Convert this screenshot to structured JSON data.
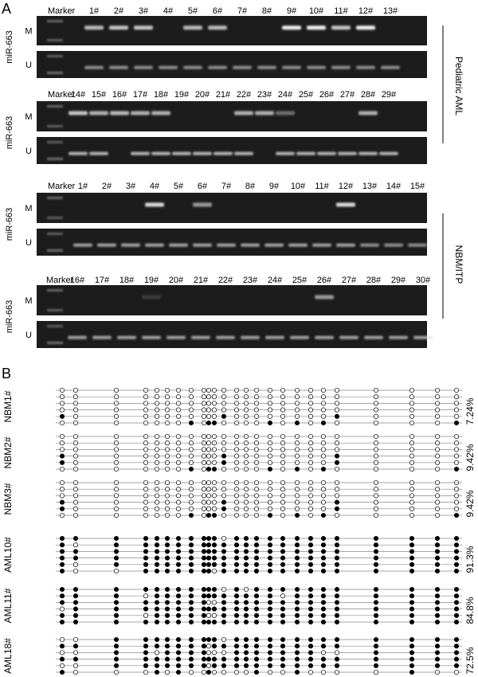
{
  "panel_a": {
    "label": "A",
    "marker_label": "Marker",
    "gene_label": "miR-663",
    "row_m": "M",
    "row_u": "U",
    "side_labels": [
      "Pediatric AML",
      "NBM/ITP"
    ],
    "gels": [
      {
        "lanes": [
          "1#",
          "2#",
          "3#",
          "4#",
          "5#",
          "6#",
          "7#",
          "8#",
          "9#",
          "10#",
          "11#",
          "12#",
          "13#"
        ],
        "m_bands": [
          0.75,
          0.8,
          0.8,
          0,
          0.75,
          0.75,
          0,
          0,
          1,
          1,
          0.8,
          1,
          0
        ],
        "u_bands": [
          0.6,
          0.6,
          0.6,
          0.6,
          0.6,
          0.6,
          0.6,
          0.6,
          0.6,
          0.6,
          0.6,
          0.6,
          0.6
        ]
      },
      {
        "lanes": [
          "14#",
          "15#",
          "16#",
          "17#",
          "18#",
          "19#",
          "20#",
          "21#",
          "22#",
          "23#",
          "24#",
          "25#",
          "26#",
          "27#",
          "28#",
          "29#"
        ],
        "m_bands": [
          0.8,
          0.7,
          0.75,
          0.7,
          0.7,
          0,
          0,
          0,
          0.7,
          0.7,
          0.4,
          0,
          0,
          0,
          0.7,
          0
        ],
        "u_bands": [
          0.8,
          0.8,
          0,
          0.8,
          0.8,
          0.8,
          0.8,
          0.8,
          0.8,
          0,
          0.8,
          0.8,
          0.8,
          0.8,
          0.8,
          0.8
        ]
      },
      {
        "lanes": [
          "1#",
          "2#",
          "3#",
          "4#",
          "5#",
          "6#",
          "7#",
          "8#",
          "9#",
          "10#",
          "11#",
          "12#",
          "13#",
          "14#",
          "15#"
        ],
        "m_bands": [
          0,
          0,
          0,
          0.9,
          0,
          0.6,
          0,
          0,
          0,
          0,
          0,
          0.9,
          0,
          0,
          0
        ],
        "u_bands": [
          0.7,
          0.7,
          0.7,
          0.7,
          0.7,
          0.7,
          0.7,
          0.7,
          0.7,
          0.7,
          0.7,
          0.7,
          0.6,
          0.6,
          0.6
        ]
      },
      {
        "lanes": [
          "16#",
          "17#",
          "18#",
          "19#",
          "20#",
          "21#",
          "22#",
          "23#",
          "24#",
          "25#",
          "26#",
          "27#",
          "28#",
          "29#",
          "30#"
        ],
        "m_bands": [
          0,
          0,
          0,
          0.15,
          0,
          0,
          0,
          0,
          0,
          0,
          0.6,
          0,
          0,
          0,
          0
        ],
        "u_bands": [
          0.7,
          0.7,
          0.7,
          0.7,
          0.7,
          0.7,
          0.7,
          0.7,
          0.7,
          0.7,
          0.7,
          0.7,
          0.7,
          0.7,
          0.7
        ]
      }
    ]
  },
  "panel_b": {
    "label": "B",
    "samples": [
      {
        "name": "NBM1#",
        "pct": "7.24%",
        "meth": [
          [
            0,
            0,
            0,
            0,
            0,
            0,
            0,
            0,
            0,
            0,
            0,
            0,
            0,
            0,
            0,
            0,
            0,
            0,
            0,
            0,
            0,
            0,
            0,
            0,
            0,
            0,
            0
          ],
          [
            0,
            0,
            0,
            0,
            0,
            0,
            0,
            0,
            0,
            0,
            0,
            0,
            0,
            0,
            0,
            0,
            0,
            0,
            0,
            0,
            0,
            0,
            0,
            0,
            0,
            0,
            0
          ],
          [
            0,
            0,
            0,
            0,
            0,
            0,
            0,
            0,
            0,
            0,
            0,
            0,
            0,
            0,
            0,
            0,
            0,
            0,
            0,
            0,
            0,
            0,
            0,
            0,
            0,
            0,
            0
          ],
          [
            0,
            0,
            0,
            0,
            0,
            0,
            0,
            0,
            0,
            0,
            0,
            0,
            0,
            0,
            0,
            0,
            0,
            0,
            0,
            0,
            0,
            0,
            0,
            0,
            0,
            0,
            0
          ],
          [
            1,
            0,
            0,
            0,
            0,
            0,
            0,
            0,
            0,
            0,
            0,
            1,
            0,
            0,
            0,
            0,
            0,
            0,
            0,
            0,
            1,
            0,
            0,
            0,
            0,
            0,
            0
          ],
          [
            0,
            0,
            0,
            0,
            0,
            0,
            0,
            1,
            0,
            1,
            1,
            0,
            0,
            0,
            0,
            1,
            0,
            1,
            0,
            1,
            0,
            0,
            0,
            0,
            1,
            0,
            0
          ]
        ]
      },
      {
        "name": "NBM2#",
        "pct": "9.42%",
        "meth": [
          [
            0,
            0,
            0,
            0,
            0,
            0,
            0,
            0,
            0,
            0,
            0,
            0,
            0,
            0,
            0,
            0,
            0,
            0,
            0,
            0,
            0,
            0,
            0,
            0,
            0,
            0,
            0
          ],
          [
            0,
            0,
            0,
            0,
            0,
            0,
            0,
            0,
            0,
            0,
            0,
            0,
            0,
            0,
            0,
            0,
            0,
            0,
            0,
            0,
            0,
            0,
            0,
            0,
            0,
            0,
            0
          ],
          [
            0,
            0,
            0,
            0,
            0,
            0,
            0,
            0,
            0,
            0,
            0,
            0,
            0,
            0,
            0,
            0,
            0,
            0,
            0,
            0,
            0,
            0,
            0,
            0,
            0,
            0,
            0
          ],
          [
            1,
            0,
            0,
            0,
            0,
            0,
            0,
            0,
            0,
            0,
            0,
            1,
            0,
            0,
            0,
            0,
            0,
            0,
            0,
            0,
            1,
            0,
            0,
            0,
            0,
            0,
            0
          ],
          [
            1,
            0,
            0,
            0,
            0,
            0,
            0,
            0,
            0,
            0,
            0,
            1,
            0,
            0,
            0,
            0,
            0,
            0,
            0,
            0,
            1,
            0,
            0,
            0,
            0,
            0,
            0
          ],
          [
            0,
            0,
            0,
            0,
            0,
            0,
            0,
            1,
            0,
            1,
            1,
            0,
            0,
            0,
            0,
            1,
            0,
            1,
            0,
            1,
            0,
            0,
            0,
            0,
            1,
            0,
            0
          ]
        ]
      },
      {
        "name": "NBM3#",
        "pct": "9.42%",
        "meth": [
          [
            0,
            0,
            0,
            0,
            0,
            0,
            0,
            0,
            0,
            0,
            0,
            0,
            0,
            0,
            0,
            0,
            0,
            0,
            0,
            0,
            0,
            0,
            0,
            0,
            0,
            0,
            0
          ],
          [
            0,
            0,
            0,
            0,
            0,
            0,
            0,
            0,
            0,
            0,
            0,
            0,
            0,
            0,
            0,
            0,
            0,
            0,
            0,
            0,
            0,
            0,
            0,
            0,
            0,
            0,
            0
          ],
          [
            0,
            0,
            0,
            0,
            0,
            0,
            0,
            0,
            0,
            0,
            0,
            0,
            0,
            0,
            0,
            0,
            0,
            0,
            0,
            0,
            0,
            0,
            0,
            0,
            0,
            0,
            0
          ],
          [
            1,
            0,
            0,
            0,
            0,
            0,
            0,
            0,
            0,
            0,
            0,
            1,
            0,
            0,
            0,
            0,
            0,
            0,
            0,
            0,
            1,
            0,
            0,
            0,
            0,
            0,
            0
          ],
          [
            1,
            0,
            0,
            0,
            0,
            0,
            0,
            0,
            0,
            0,
            0,
            1,
            0,
            0,
            0,
            0,
            0,
            0,
            0,
            0,
            1,
            0,
            0,
            0,
            0,
            0,
            0
          ],
          [
            0,
            0,
            0,
            0,
            0,
            0,
            0,
            1,
            0,
            1,
            1,
            0,
            0,
            0,
            0,
            1,
            0,
            1,
            0,
            1,
            0,
            0,
            0,
            0,
            1,
            0,
            0
          ]
        ]
      },
      {
        "name": "AML10#",
        "pct": "91.3%",
        "meth": [
          [
            1,
            1,
            1,
            1,
            1,
            1,
            1,
            1,
            1,
            1,
            1,
            0,
            1,
            1,
            1,
            1,
            1,
            1,
            1,
            1,
            1,
            1,
            1,
            1,
            1,
            1,
            1
          ],
          [
            1,
            0,
            1,
            1,
            1,
            1,
            1,
            1,
            1,
            1,
            1,
            1,
            1,
            1,
            1,
            1,
            1,
            1,
            1,
            1,
            1,
            1,
            1,
            1,
            1,
            1,
            1
          ],
          [
            1,
            1,
            1,
            1,
            1,
            1,
            1,
            1,
            1,
            1,
            1,
            1,
            1,
            1,
            1,
            1,
            1,
            1,
            1,
            1,
            1,
            1,
            1,
            1,
            1,
            1,
            1
          ],
          [
            1,
            1,
            1,
            1,
            1,
            1,
            1,
            1,
            1,
            1,
            1,
            1,
            1,
            1,
            1,
            1,
            1,
            1,
            1,
            1,
            1,
            1,
            1,
            1,
            1,
            1,
            1
          ],
          [
            1,
            0,
            1,
            1,
            1,
            1,
            1,
            1,
            1,
            1,
            1,
            1,
            1,
            1,
            1,
            1,
            1,
            1,
            1,
            1,
            1,
            1,
            1,
            1,
            1,
            1,
            1
          ],
          [
            1,
            0,
            0,
            1,
            1,
            1,
            1,
            1,
            1,
            1,
            0,
            1,
            1,
            1,
            1,
            1,
            1,
            1,
            1,
            1,
            1,
            1,
            1,
            1,
            1,
            1,
            1
          ]
        ]
      },
      {
        "name": "AML11#",
        "pct": "84.8%",
        "meth": [
          [
            1,
            1,
            1,
            1,
            1,
            1,
            1,
            1,
            1,
            1,
            1,
            0,
            1,
            0,
            1,
            1,
            1,
            1,
            1,
            1,
            1,
            1,
            1,
            1,
            1,
            1,
            1
          ],
          [
            1,
            1,
            1,
            0,
            1,
            1,
            1,
            1,
            1,
            1,
            1,
            1,
            1,
            1,
            1,
            1,
            0,
            1,
            1,
            1,
            1,
            1,
            1,
            1,
            1,
            1,
            1
          ],
          [
            1,
            1,
            1,
            1,
            1,
            1,
            1,
            1,
            1,
            0,
            0,
            1,
            1,
            1,
            1,
            1,
            1,
            1,
            1,
            1,
            1,
            1,
            1,
            1,
            1,
            1,
            1
          ],
          [
            0,
            1,
            1,
            1,
            1,
            1,
            1,
            1,
            1,
            1,
            1,
            1,
            1,
            1,
            1,
            1,
            1,
            1,
            1,
            1,
            1,
            1,
            1,
            1,
            1,
            1,
            1
          ],
          [
            1,
            1,
            1,
            0,
            1,
            1,
            1,
            1,
            1,
            0,
            0,
            1,
            1,
            1,
            1,
            1,
            1,
            1,
            1,
            1,
            1,
            1,
            1,
            1,
            1,
            1,
            1
          ],
          [
            1,
            1,
            1,
            1,
            1,
            1,
            1,
            1,
            1,
            1,
            1,
            1,
            1,
            1,
            1,
            1,
            1,
            1,
            1,
            1,
            1,
            1,
            1,
            1,
            1,
            1,
            1
          ]
        ]
      },
      {
        "name": "AML18#",
        "pct": "72.5%",
        "meth": [
          [
            0,
            0,
            1,
            1,
            1,
            1,
            1,
            1,
            1,
            1,
            1,
            0,
            1,
            1,
            1,
            1,
            1,
            1,
            1,
            1,
            1,
            1,
            1,
            1,
            1,
            1,
            1
          ],
          [
            1,
            1,
            1,
            1,
            1,
            1,
            1,
            1,
            1,
            0,
            1,
            1,
            1,
            1,
            1,
            1,
            1,
            1,
            1,
            1,
            1,
            1,
            1,
            1,
            1,
            1,
            1
          ],
          [
            0,
            0,
            1,
            1,
            0,
            1,
            1,
            1,
            1,
            0,
            0,
            0,
            1,
            1,
            1,
            1,
            1,
            1,
            1,
            0,
            0,
            1,
            1,
            1,
            1,
            1,
            1
          ],
          [
            1,
            1,
            1,
            1,
            1,
            1,
            1,
            1,
            1,
            1,
            1,
            1,
            1,
            1,
            1,
            1,
            1,
            1,
            1,
            1,
            1,
            1,
            1,
            1,
            1,
            1,
            1
          ],
          [
            0,
            0,
            1,
            1,
            1,
            1,
            1,
            1,
            1,
            0,
            1,
            1,
            1,
            1,
            1,
            1,
            1,
            1,
            1,
            1,
            1,
            1,
            1,
            1,
            1,
            1,
            1
          ],
          [
            1,
            0,
            0,
            0,
            1,
            0,
            1,
            0,
            0,
            1,
            0,
            0,
            0,
            0,
            1,
            0,
            0,
            1,
            0,
            0,
            0,
            0,
            1,
            0,
            0,
            0,
            1
          ]
        ]
      }
    ]
  }
}
